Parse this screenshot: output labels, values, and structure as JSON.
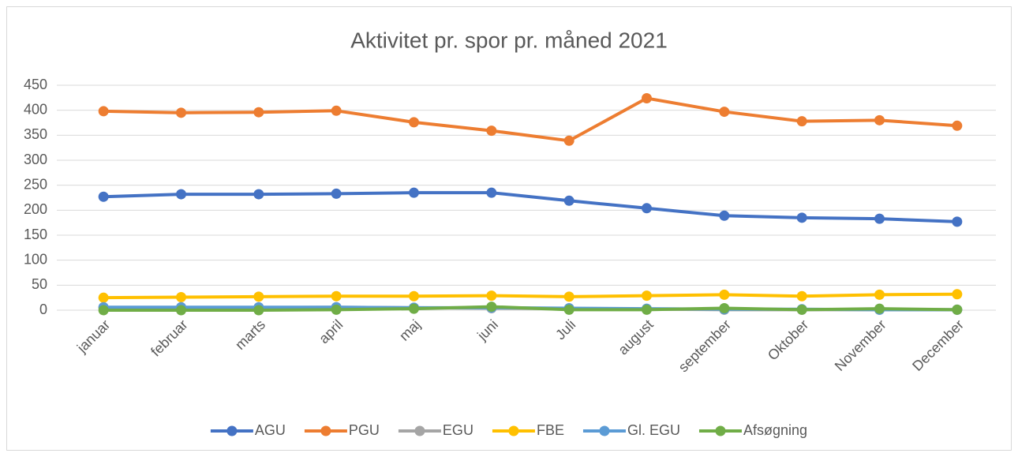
{
  "chart_data": {
    "type": "line",
    "title": "Aktivitet pr. spor pr. måned 2021",
    "categories": [
      "januar",
      "februar",
      "marts",
      "april",
      "maj",
      "juni",
      "Juli",
      "august",
      "september",
      "Oktober",
      "November",
      "December"
    ],
    "series": [
      {
        "name": "AGU",
        "color": "#4472c4",
        "values": [
          227,
          232,
          232,
          233,
          235,
          235,
          219,
          204,
          189,
          185,
          183,
          177
        ]
      },
      {
        "name": "PGU",
        "color": "#ed7d31",
        "values": [
          398,
          395,
          396,
          399,
          376,
          359,
          339,
          424,
          397,
          378,
          380,
          369
        ]
      },
      {
        "name": "EGU",
        "color": "#a5a5a5",
        "values": [
          5,
          5,
          5,
          6,
          5,
          4,
          3,
          2,
          1,
          1,
          1,
          1
        ]
      },
      {
        "name": "FBE",
        "color": "#ffc000",
        "values": [
          25,
          26,
          27,
          28,
          28,
          29,
          27,
          29,
          31,
          28,
          31,
          32
        ]
      },
      {
        "name": "Gl. EGU",
        "color": "#5b9bd5",
        "values": [
          6,
          6,
          6,
          6,
          5,
          5,
          4,
          3,
          2,
          2,
          1,
          1
        ]
      },
      {
        "name": "Afsøgning",
        "color": "#70ad47",
        "values": [
          0,
          0,
          0,
          1,
          3,
          7,
          1,
          1,
          4,
          1,
          3,
          1
        ]
      }
    ],
    "ylim": [
      0,
      450
    ],
    "yticks": [
      0,
      50,
      100,
      150,
      200,
      250,
      300,
      350,
      400,
      450
    ],
    "grid": true,
    "legend": "bottom"
  }
}
